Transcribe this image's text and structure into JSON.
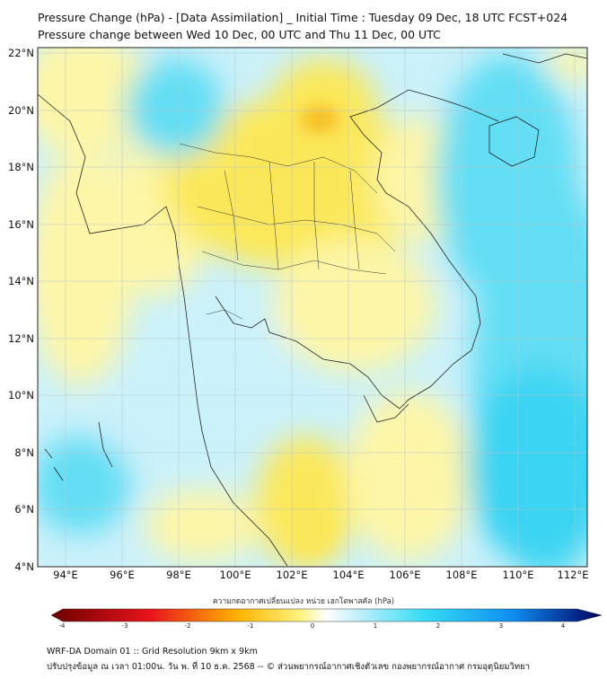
{
  "header": {
    "title": "Pressure Change (hPa) - [Data Assimilation] _ Initial Time : Tuesday 09 Dec, 18 UTC FCST+024",
    "subtitle": "Pressure change between Wed 10 Dec, 00 UTC and Thu 11 Dec, 00 UTC"
  },
  "axes": {
    "lat_labels": [
      "22°N",
      "20°N",
      "18°N",
      "16°N",
      "14°N",
      "12°N",
      "10°N",
      "8°N",
      "6°N",
      "4°N"
    ],
    "lon_labels": [
      "94°E",
      "96°E",
      "98°E",
      "100°E",
      "102°E",
      "104°E",
      "106°E",
      "108°E",
      "110°E",
      "112°E"
    ],
    "lat_range": [
      4,
      22
    ],
    "lon_range": [
      93,
      112.5
    ],
    "grid": true
  },
  "colorbar": {
    "caption": "ความกดอากาศเปลี่ยนแปลง หน่วย เฮกโตพาสคัล (hPa)",
    "ticks": [
      "-4",
      "-3",
      "-2",
      "-1",
      "0",
      "1",
      "2",
      "3",
      "4"
    ],
    "range": [
      -4,
      4
    ],
    "colors": {
      "neg_strong": "#6b0000",
      "neg_mid": "#e8141b",
      "neg_light": "#ffb400",
      "neg_faint": "#fff27a",
      "zero": "#ffffff",
      "pos_faint": "#c9f1fb",
      "pos_light": "#33dcf5",
      "pos_mid": "#0f8cf0",
      "pos_strong": "#000060"
    }
  },
  "field_colors": {
    "pale_yellow": "#fdf6a8",
    "yellow": "#fbe85a",
    "orange": "#f7c12b",
    "pale_cyan": "#cbf1fa",
    "cyan": "#63def4",
    "deep_cyan": "#3bd4f2"
  },
  "footer": {
    "line1": "WRF-DA Domain 01 :: Grid Resolution 9km x 9km",
    "line2": "ปรับปรุงข้อมูล ณ เวลา 01:00น. วัน พ. ที่ 10 ธ.ค. 2568 -- © ส่วนพยากรณ์อากาศเชิงตัวเลข กองพยากรณ์อากาศ กรมอุตุนิยมวิทยา"
  }
}
